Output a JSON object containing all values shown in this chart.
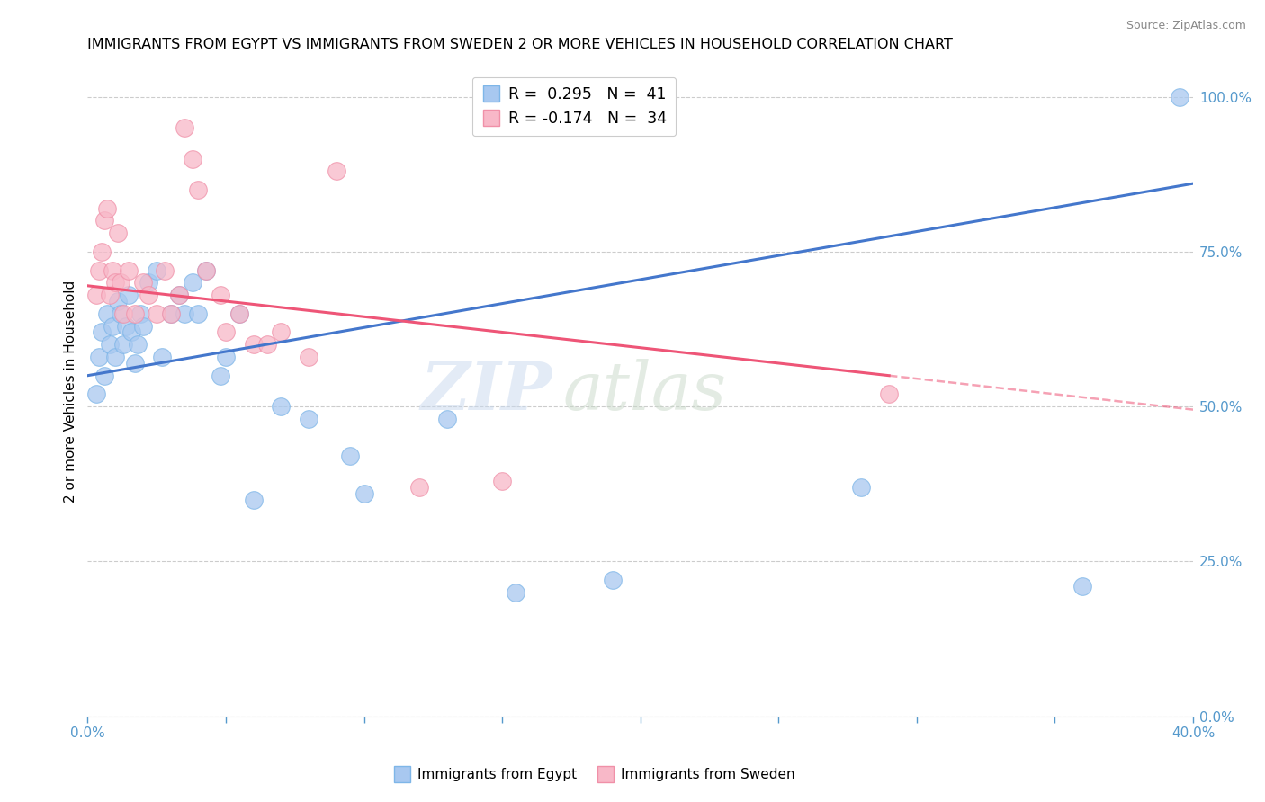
{
  "title": "IMMIGRANTS FROM EGYPT VS IMMIGRANTS FROM SWEDEN 2 OR MORE VEHICLES IN HOUSEHOLD CORRELATION CHART",
  "source": "Source: ZipAtlas.com",
  "ylabel_left": "2 or more Vehicles in Household",
  "x_min": 0.0,
  "x_max": 0.4,
  "y_min": 0.0,
  "y_max": 1.05,
  "y_ticks_right": [
    0.0,
    0.25,
    0.5,
    0.75,
    1.0
  ],
  "y_tick_labels_right": [
    "0.0%",
    "25.0%",
    "50.0%",
    "75.0%",
    "100.0%"
  ],
  "egypt_color": "#A8C8F0",
  "egypt_edge_color": "#7EB6E8",
  "sweden_color": "#F8B8C8",
  "sweden_edge_color": "#F090A8",
  "egypt_line_color": "#4477CC",
  "sweden_line_color": "#EE5577",
  "watermark_zip": "ZIP",
  "watermark_atlas": "atlas",
  "egypt_R": 0.295,
  "sweden_R": -0.174,
  "egypt_N": 41,
  "sweden_N": 34,
  "background_color": "#FFFFFF",
  "grid_color": "#CCCCCC",
  "right_axis_color": "#5599CC",
  "bottom_axis_color": "#5599CC",
  "title_fontsize": 11.5,
  "axis_label_fontsize": 11,
  "egypt_line_y0": 0.55,
  "egypt_line_y1": 0.86,
  "sweden_line_y0": 0.695,
  "sweden_line_y1": 0.495,
  "egypt_scatter_x": [
    0.003,
    0.004,
    0.005,
    0.006,
    0.007,
    0.008,
    0.009,
    0.01,
    0.011,
    0.012,
    0.013,
    0.014,
    0.015,
    0.016,
    0.017,
    0.018,
    0.019,
    0.02,
    0.022,
    0.025,
    0.027,
    0.03,
    0.033,
    0.035,
    0.038,
    0.04,
    0.043,
    0.048,
    0.05,
    0.055,
    0.06,
    0.07,
    0.08,
    0.095,
    0.1,
    0.13,
    0.155,
    0.19,
    0.28,
    0.36,
    0.395
  ],
  "egypt_scatter_y": [
    0.52,
    0.58,
    0.62,
    0.55,
    0.65,
    0.6,
    0.63,
    0.58,
    0.67,
    0.65,
    0.6,
    0.63,
    0.68,
    0.62,
    0.57,
    0.6,
    0.65,
    0.63,
    0.7,
    0.72,
    0.58,
    0.65,
    0.68,
    0.65,
    0.7,
    0.65,
    0.72,
    0.55,
    0.58,
    0.65,
    0.35,
    0.5,
    0.48,
    0.42,
    0.36,
    0.48,
    0.2,
    0.22,
    0.37,
    0.21,
    1.0
  ],
  "sweden_scatter_x": [
    0.003,
    0.004,
    0.005,
    0.006,
    0.007,
    0.008,
    0.009,
    0.01,
    0.011,
    0.012,
    0.013,
    0.015,
    0.017,
    0.02,
    0.022,
    0.025,
    0.028,
    0.03,
    0.033,
    0.035,
    0.038,
    0.04,
    0.043,
    0.048,
    0.05,
    0.055,
    0.06,
    0.065,
    0.07,
    0.08,
    0.09,
    0.12,
    0.15,
    0.29
  ],
  "sweden_scatter_y": [
    0.68,
    0.72,
    0.75,
    0.8,
    0.82,
    0.68,
    0.72,
    0.7,
    0.78,
    0.7,
    0.65,
    0.72,
    0.65,
    0.7,
    0.68,
    0.65,
    0.72,
    0.65,
    0.68,
    0.95,
    0.9,
    0.85,
    0.72,
    0.68,
    0.62,
    0.65,
    0.6,
    0.6,
    0.62,
    0.58,
    0.88,
    0.37,
    0.38,
    0.52
  ]
}
